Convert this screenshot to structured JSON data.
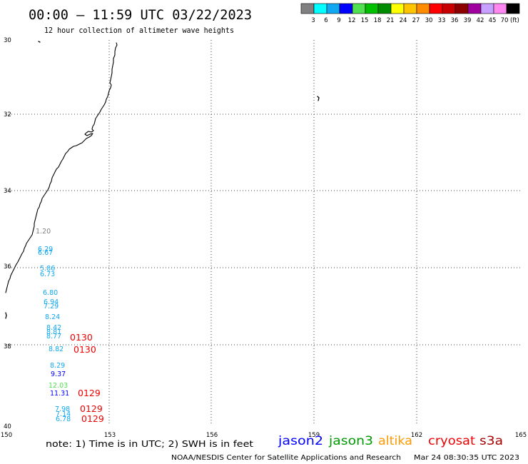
{
  "header": {
    "title": "00:00 – 11:59 UTC 03/22/2023",
    "subtitle": "12 hour collection of altimeter wave heights"
  },
  "legend": {
    "colors": [
      "#808080",
      "#00ffff",
      "#10a8f0",
      "#0000ff",
      "#50e050",
      "#00c000",
      "#008c00",
      "#ffff00",
      "#ffc400",
      "#ff8c00",
      "#ff0000",
      "#c80000",
      "#8c0000",
      "#a000a0",
      "#c8a0ff",
      "#ff88f0",
      "#000000"
    ],
    "labels": [
      "3",
      "6",
      "9",
      "12",
      "15",
      "18",
      "21",
      "24",
      "27",
      "30",
      "33",
      "36",
      "39",
      "42",
      "45",
      "70"
    ],
    "unit": "(ft)"
  },
  "map": {
    "lat_labels": [
      "30",
      "32",
      "34",
      "36",
      "38",
      "40"
    ],
    "lon_labels": [
      "150",
      "153",
      "156",
      "159",
      "162",
      "165"
    ],
    "wave_heights": [
      {
        "value": "1.20",
        "color": "#808080"
      },
      {
        "value": "6.29",
        "color": "#10a8f0"
      },
      {
        "value": "6.67",
        "color": "#10a8f0"
      },
      {
        "value": "5.86",
        "color": "#10a8f0"
      },
      {
        "value": "6.73",
        "color": "#10a8f0"
      },
      {
        "value": "6.80",
        "color": "#10a8f0"
      },
      {
        "value": "6.94",
        "color": "#10a8f0"
      },
      {
        "value": "7.29",
        "color": "#10a8f0"
      },
      {
        "value": "8.24",
        "color": "#10a8f0"
      },
      {
        "value": "8.42",
        "color": "#10a8f0"
      },
      {
        "value": "8.81",
        "color": "#10a8f0"
      },
      {
        "value": "8.77",
        "color": "#10a8f0"
      },
      {
        "value": "8.82",
        "color": "#10a8f0"
      },
      {
        "value": "8.29",
        "color": "#10a8f0"
      },
      {
        "value": "9.37",
        "color": "#0000ff"
      },
      {
        "value": "12.03",
        "color": "#50e050"
      },
      {
        "value": "11.31",
        "color": "#0000ff"
      },
      {
        "value": "7.98",
        "color": "#10a8f0"
      },
      {
        "value": "7.14",
        "color": "#10a8f0"
      },
      {
        "value": "6.78",
        "color": "#10a8f0"
      }
    ],
    "pass_times": [
      {
        "time": "0130",
        "color": "#ee0000"
      },
      {
        "time": "0130",
        "color": "#ee0000"
      },
      {
        "time": "0129",
        "color": "#ee0000"
      },
      {
        "time": "0129",
        "color": "#ee0000"
      },
      {
        "time": "0129",
        "color": "#ee0000"
      }
    ]
  },
  "note": {
    "text": "note: 1) Time is in UTC; 2) SWH is in feet",
    "satellites": [
      {
        "name": "jason2",
        "color": "#0000ff"
      },
      {
        "name": "jason3",
        "color": "#009900"
      },
      {
        "name": "altika",
        "color": "#ff9900"
      },
      {
        "name": "cryosat",
        "color": "#ee0000"
      },
      {
        "name": "s3a",
        "color": "#aa0000"
      }
    ]
  },
  "footer": {
    "credit": "NOAA/NESDIS Center for Satellite Applications and Research",
    "generated": "Mar 24 08:30:35 UTC 2023"
  }
}
